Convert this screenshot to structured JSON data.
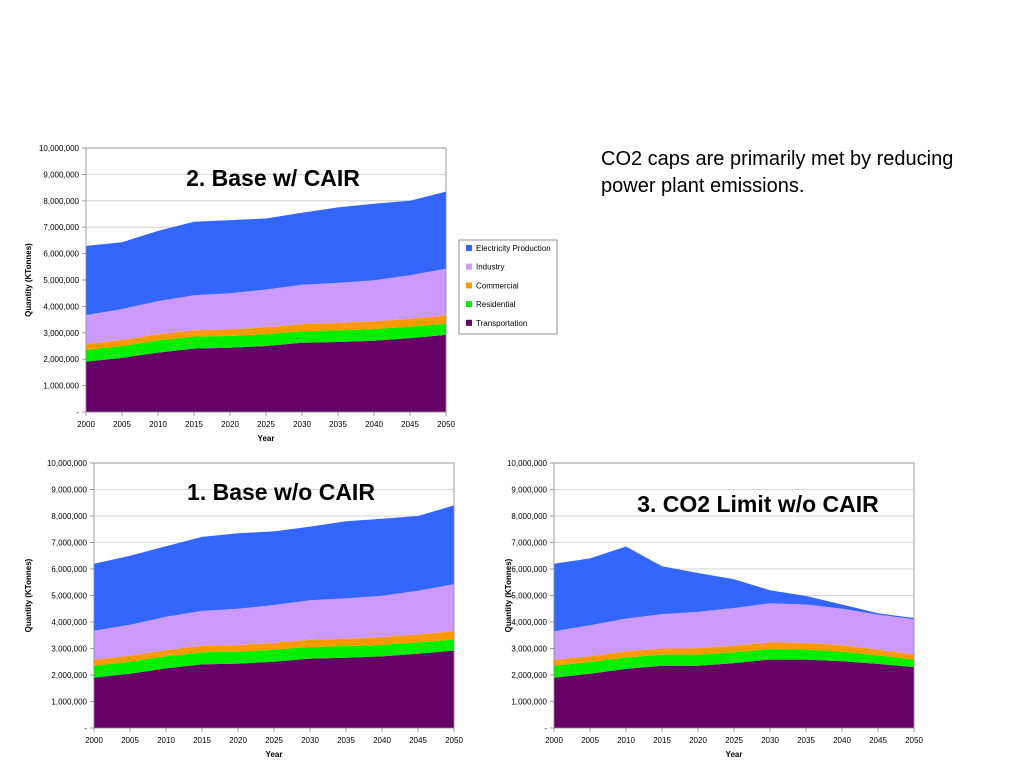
{
  "note": "CO2 caps are primarily met by reducing power plant emissions.",
  "chart_data": [
    {
      "id": "chart-top",
      "type": "area",
      "stacked": true,
      "title": "2. Base w/ CAIR",
      "xlabel": "Year",
      "ylabel": "Quantity (KTonnes)",
      "ylim": [
        0,
        10000000
      ],
      "y_ticks": [
        "-",
        "1,000,000",
        "2,000,000",
        "3,000,000",
        "4,000,000",
        "5,000,000",
        "6,000,000",
        "7,000,000",
        "8,000,000",
        "9,000,000",
        "10,000,000"
      ],
      "grid": true,
      "legend_position": "right",
      "x": [
        "2000",
        "2005",
        "2010",
        "2015",
        "2020",
        "2025",
        "2030",
        "2035",
        "2040",
        "2045",
        "2050"
      ],
      "series": [
        {
          "name": "Transportation",
          "color": "#660066",
          "values": [
            1900000,
            2050000,
            2250000,
            2400000,
            2430000,
            2500000,
            2620000,
            2650000,
            2700000,
            2800000,
            2920000
          ]
        },
        {
          "name": "Residential",
          "color": "#00ee00",
          "values": [
            450000,
            450000,
            460000,
            460000,
            450000,
            450000,
            440000,
            440000,
            440000,
            430000,
            420000
          ]
        },
        {
          "name": "Commercial",
          "color": "#ff9900",
          "values": [
            220000,
            230000,
            230000,
            240000,
            250000,
            260000,
            270000,
            280000,
            290000,
            300000,
            310000
          ]
        },
        {
          "name": "Industry",
          "color": "#cc99ff",
          "values": [
            1100000,
            1170000,
            1260000,
            1320000,
            1370000,
            1430000,
            1490000,
            1520000,
            1560000,
            1650000,
            1780000
          ]
        },
        {
          "name": "Electricity Production",
          "color": "#3366ff",
          "values": [
            2620000,
            2530000,
            2660000,
            2790000,
            2770000,
            2690000,
            2730000,
            2860000,
            2900000,
            2820000,
            2920000
          ]
        }
      ]
    },
    {
      "id": "chart-bl",
      "type": "area",
      "stacked": true,
      "title": "1. Base w/o CAIR",
      "xlabel": "Year",
      "ylabel": "Quantity (KTonnes)",
      "ylim": [
        0,
        10000000
      ],
      "y_ticks": [
        "-",
        "1,000,000",
        "2,000,000",
        "3,000,000",
        "4,000,000",
        "5,000,000",
        "6,000,000",
        "7,000,000",
        "8,000,000",
        "9,000,000",
        "10,000,000"
      ],
      "grid": true,
      "x": [
        "2000",
        "2005",
        "2010",
        "2015",
        "2020",
        "2025",
        "2030",
        "2035",
        "2040",
        "2045",
        "2050"
      ],
      "series": [
        {
          "name": "Transportation",
          "color": "#660066",
          "values": [
            1900000,
            2050000,
            2250000,
            2400000,
            2430000,
            2500000,
            2620000,
            2650000,
            2700000,
            2800000,
            2920000
          ]
        },
        {
          "name": "Residential",
          "color": "#00ee00",
          "values": [
            450000,
            450000,
            460000,
            460000,
            450000,
            450000,
            440000,
            440000,
            440000,
            430000,
            420000
          ]
        },
        {
          "name": "Commercial",
          "color": "#ff9900",
          "values": [
            220000,
            230000,
            230000,
            240000,
            250000,
            260000,
            270000,
            280000,
            290000,
            300000,
            310000
          ]
        },
        {
          "name": "Industry",
          "color": "#cc99ff",
          "values": [
            1100000,
            1170000,
            1260000,
            1320000,
            1370000,
            1430000,
            1490000,
            1520000,
            1560000,
            1650000,
            1780000
          ]
        },
        {
          "name": "Electricity Production",
          "color": "#3366ff",
          "values": [
            2530000,
            2600000,
            2660000,
            2790000,
            2850000,
            2780000,
            2780000,
            2910000,
            2910000,
            2820000,
            2970000
          ]
        }
      ]
    },
    {
      "id": "chart-br",
      "type": "area",
      "stacked": true,
      "title": "3. CO2 Limit w/o CAIR",
      "xlabel": "Year",
      "ylabel": "Quantity (KTonnes)",
      "ylim": [
        0,
        10000000
      ],
      "y_ticks": [
        "-",
        "1,000,000",
        "2,000,000",
        "3,000,000",
        "4,000,000",
        "5,000,000",
        "6,000,000",
        "7,000,000",
        "8,000,000",
        "9,000,000",
        "10,000,000"
      ],
      "grid": true,
      "x": [
        "2000",
        "2005",
        "2010",
        "2015",
        "2020",
        "2025",
        "2030",
        "2035",
        "2040",
        "2045",
        "2050"
      ],
      "series": [
        {
          "name": "Transportation",
          "color": "#660066",
          "values": [
            1900000,
            2050000,
            2230000,
            2350000,
            2350000,
            2450000,
            2580000,
            2580000,
            2520000,
            2420000,
            2300000
          ]
        },
        {
          "name": "Residential",
          "color": "#00ee00",
          "values": [
            450000,
            440000,
            430000,
            420000,
            420000,
            410000,
            400000,
            380000,
            360000,
            320000,
            280000
          ]
        },
        {
          "name": "Commercial",
          "color": "#ff9900",
          "values": [
            220000,
            220000,
            230000,
            230000,
            240000,
            240000,
            250000,
            250000,
            240000,
            220000,
            190000
          ]
        },
        {
          "name": "Industry",
          "color": "#cc99ff",
          "values": [
            1080000,
            1170000,
            1240000,
            1300000,
            1370000,
            1430000,
            1480000,
            1450000,
            1380000,
            1320000,
            1330000
          ]
        },
        {
          "name": "Electricity Production",
          "color": "#3366ff",
          "values": [
            2550000,
            2520000,
            2720000,
            1800000,
            1470000,
            1080000,
            490000,
            320000,
            160000,
            50000,
            50000
          ]
        }
      ]
    }
  ]
}
